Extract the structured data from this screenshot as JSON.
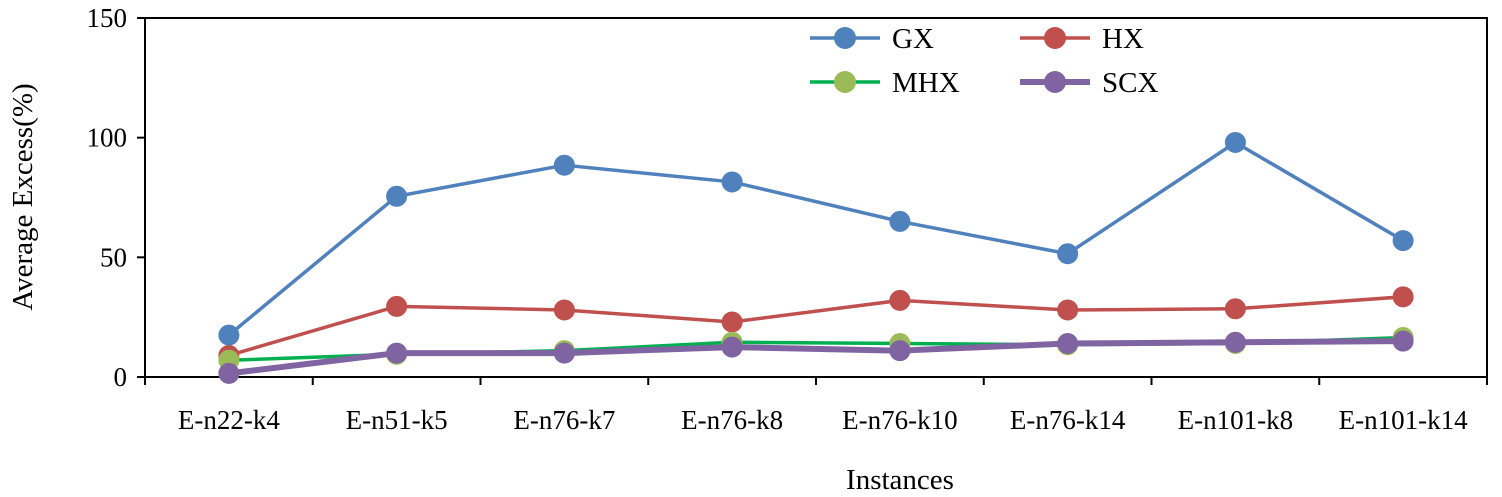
{
  "chart_data": {
    "type": "line",
    "title": "",
    "xlabel": "Instances",
    "ylabel": "Average Excess(%)",
    "ylim": [
      0,
      150
    ],
    "yticks": [
      0,
      50,
      100,
      150
    ],
    "grid": false,
    "legend_position": "top-right",
    "categories": [
      "E-n22-k4",
      "E-n51-k5",
      "E-n76-k7",
      "E-n76-k8",
      "E-n76-k10",
      "E-n76-k14",
      "E-n101-k8",
      "E-n101-k14"
    ],
    "series": [
      {
        "name": "GX",
        "line_color": "#4F81BD",
        "marker_color": "#4F81BD",
        "values": [
          17.5,
          75.5,
          88.5,
          81.5,
          65,
          51.5,
          98,
          57
        ]
      },
      {
        "name": "HX",
        "line_color": "#C0504D",
        "marker_color": "#C0504D",
        "values": [
          9,
          29.5,
          28,
          23,
          32,
          28,
          28.5,
          33.5
        ]
      },
      {
        "name": "MHX",
        "line_color": "#00B050",
        "marker_color": "#9BBB59",
        "values": [
          7,
          9.5,
          11,
          14.5,
          14,
          13.5,
          14,
          16.5
        ]
      },
      {
        "name": "SCX",
        "line_color": "#8064A2",
        "marker_color": "#8064A2",
        "values": [
          1.5,
          10,
          10,
          12.5,
          11,
          14,
          14.5,
          15
        ]
      }
    ]
  }
}
